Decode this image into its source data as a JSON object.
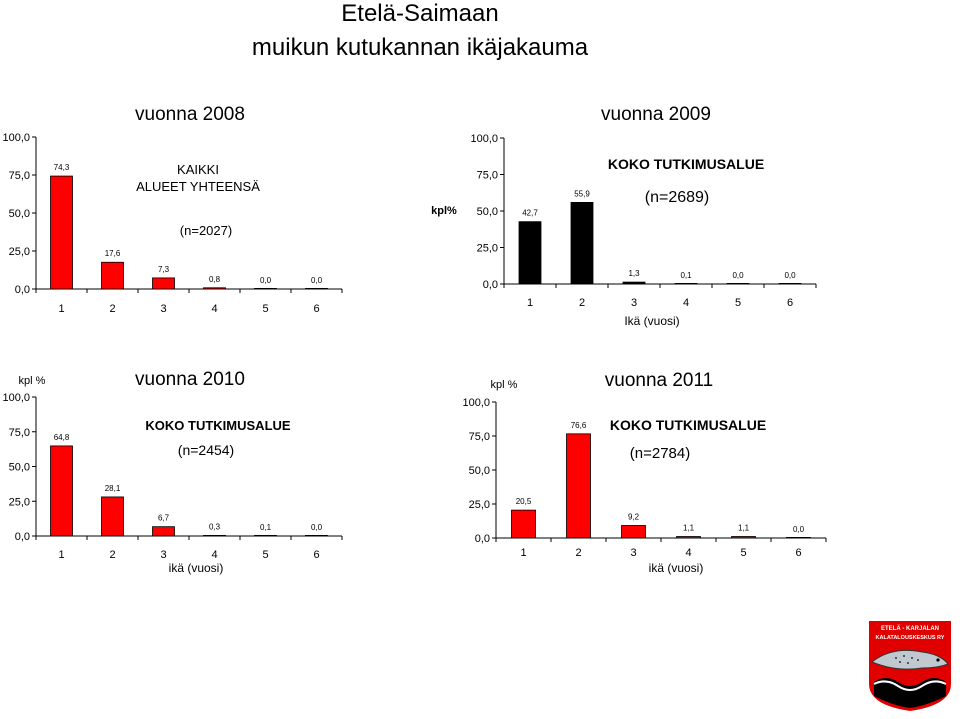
{
  "page": {
    "title_line1": "Etelä-Saimaan",
    "title_line2": "muikun kutukannan   ikäjakauma"
  },
  "logo": {
    "text_line1": "ETELÄ - KARJALAN",
    "text_line2": "KALATALOUSKESKUS RY"
  },
  "chart_data": [
    {
      "type": "bar",
      "year_label": "vuonna 2008",
      "area_label_line1": "KAIKKI",
      "area_label_line2": "ALUEET YHTEENSÄ",
      "n_label": "(n=2027)",
      "ylabel": "",
      "xlabel": "",
      "categories": [
        "1",
        "2",
        "3",
        "4",
        "5",
        "6"
      ],
      "values": [
        74.3,
        17.6,
        7.3,
        0.8,
        0.0,
        0.0
      ],
      "value_labels": [
        "74,3",
        "17,6",
        "7,3",
        "0,8",
        "0,0",
        "0,0"
      ],
      "yticks": [
        "0,0",
        "25,0",
        "50,0",
        "75,0",
        "100,0"
      ],
      "ylim": [
        0,
        100
      ],
      "bar_color": "#ff0000",
      "grid": false
    },
    {
      "type": "bar",
      "year_label": "vuonna 2009",
      "area_label_line1": "KOKO TUTKIMUSALUE",
      "area_label_line2": "",
      "n_label": "(n=2689)",
      "ylabel": "kpl%",
      "xlabel": "Ikä (vuosi)",
      "categories": [
        "1",
        "2",
        "3",
        "4",
        "5",
        "6"
      ],
      "values": [
        42.7,
        55.9,
        1.3,
        0.1,
        0.0,
        0.0
      ],
      "value_labels": [
        "42,7",
        "55,9",
        "1,3",
        "0,1",
        "0,0",
        "0,0"
      ],
      "yticks": [
        "0,0",
        "25,0",
        "50,0",
        "75,0",
        "100,0"
      ],
      "ylim": [
        0,
        100
      ],
      "bar_color": "#000000",
      "grid": false
    },
    {
      "type": "bar",
      "year_label": "vuonna 2010",
      "area_label_line1": "KOKO TUTKIMUSALUE",
      "area_label_line2": "",
      "n_label": "(n=2454)",
      "ylabel": "kpl %",
      "xlabel": "ikä (vuosi)",
      "categories": [
        "1",
        "2",
        "3",
        "4",
        "5",
        "6"
      ],
      "values": [
        64.8,
        28.1,
        6.7,
        0.3,
        0.1,
        0.0
      ],
      "value_labels": [
        "64,8",
        "28,1",
        "6,7",
        "0,3",
        "0,1",
        "0,0"
      ],
      "yticks": [
        "0,0",
        "25,0",
        "50,0",
        "75,0",
        "100,0"
      ],
      "ylim": [
        0,
        100
      ],
      "bar_color": "#ff0000",
      "grid": false
    },
    {
      "type": "bar",
      "year_label": "vuonna 2011",
      "area_label_line1": "KOKO TUTKIMUSALUE",
      "area_label_line2": "",
      "n_label": "(n=2784)",
      "ylabel": "kpl %",
      "xlabel": "ikä (vuosi)",
      "categories": [
        "1",
        "2",
        "3",
        "4",
        "5",
        "6"
      ],
      "values": [
        20.5,
        76.6,
        9.2,
        1.1,
        1.1,
        0.0
      ],
      "value_labels": [
        "20,5",
        "76,6",
        "9,2",
        "1,1",
        "1,1",
        "0,0"
      ],
      "yticks": [
        "0,0",
        "25,0",
        "50,0",
        "75,0",
        "100,0"
      ],
      "ylim": [
        0,
        100
      ],
      "bar_color": "#ff0000",
      "grid": false
    }
  ]
}
